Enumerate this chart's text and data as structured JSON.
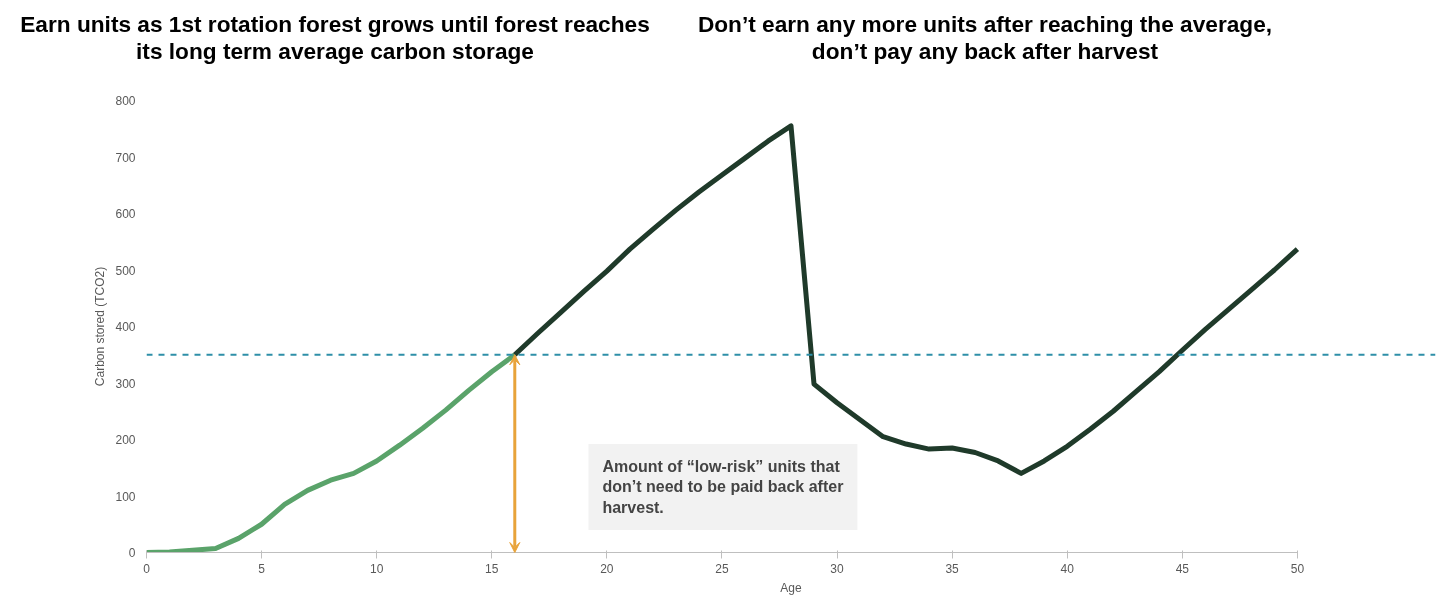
{
  "chart_data": {
    "type": "line",
    "xlabel": "Age",
    "ylabel": "Carbon stored (TCO2)",
    "xlim": [
      0,
      56
    ],
    "xticks": [
      0,
      5,
      10,
      15,
      20,
      25,
      30,
      35,
      40,
      45,
      50
    ],
    "ylim": [
      0,
      800
    ],
    "yticks": [
      0,
      100,
      200,
      300,
      400,
      500,
      600,
      700,
      800
    ],
    "grid": false,
    "marker": "none",
    "line_style": "solid",
    "series": [
      {
        "color": "#5aa36a",
        "x": [
          0,
          1,
          2,
          3,
          4,
          5,
          6,
          7,
          8,
          9,
          10,
          11,
          12,
          13,
          14,
          15,
          16
        ],
        "values": [
          0,
          1,
          4,
          7,
          25,
          50,
          85,
          110,
          128,
          140,
          162,
          190,
          220,
          252,
          287,
          320,
          350
        ]
      },
      {
        "color": "#1f3a2a",
        "x": [
          16,
          17,
          18,
          19,
          20,
          21,
          22,
          23,
          24,
          25,
          26,
          27,
          28,
          29,
          30,
          31,
          32,
          33,
          34,
          35,
          36,
          37,
          38,
          39,
          40,
          41,
          42,
          43,
          44,
          45,
          46,
          47,
          48,
          49,
          50
        ],
        "values": [
          350,
          388,
          425,
          462,
          498,
          537,
          572,
          606,
          638,
          668,
          698,
          728,
          755,
          298,
          265,
          235,
          205,
          192,
          183,
          185,
          177,
          162,
          140,
          162,
          188,
          218,
          250,
          285,
          320,
          358,
          395,
          430,
          465,
          500,
          537
        ]
      }
    ],
    "ref_lines": [
      {
        "axis": "y",
        "value": 350,
        "color": "#2e8fa8",
        "line_style": "dashed"
      }
    ],
    "annotations": [
      "Earn units as 1st rotation forest grows until forest reaches its long term average carbon storage",
      "Don’t earn any more units after reaching the average, don’t pay any back after harvest",
      "Amount of “low-risk” units that don’t need to be paid back after harvest."
    ]
  }
}
